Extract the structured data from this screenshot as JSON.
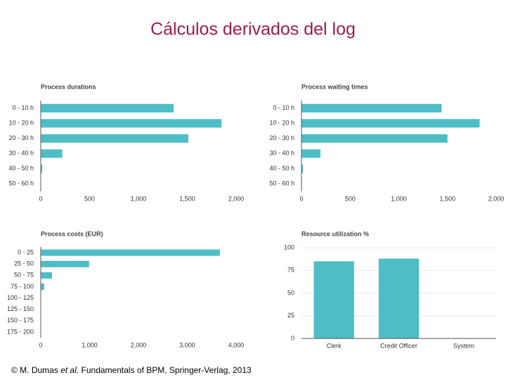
{
  "title": "Cálculos derivados del log",
  "footer": [
    "© M. Dumas ",
    "et al.",
    " Fundamentals of BPM, Springer-Verlag, 2013"
  ],
  "chart_data": [
    {
      "type": "bar",
      "horizontal": true,
      "title": "Process durations",
      "categories": [
        "0 - 10 h",
        "10 - 20 h",
        "20 - 30 h",
        "30 - 40 h",
        "40 - 50 h",
        "50 - 60 h"
      ],
      "values": [
        1360,
        1850,
        1510,
        220,
        15,
        0
      ],
      "color": "#4dbdc6",
      "xlim": [
        0,
        2000
      ],
      "xticks": [
        0,
        500,
        {
          "value": 1000,
          "label": "1,000"
        },
        {
          "value": 1500,
          "label": "1,500"
        },
        {
          "value": 2000,
          "label": "2,000"
        }
      ],
      "grid": false
    },
    {
      "type": "bar",
      "horizontal": true,
      "title": "Process waiting times",
      "categories": [
        "0 - 10 h",
        "10 - 20 h",
        "20 - 30 h",
        "30 - 40 h",
        "40 - 50 h",
        "50 - 60 h"
      ],
      "values": [
        1440,
        1830,
        1500,
        195,
        15,
        0
      ],
      "color": "#4dbdc6",
      "xlim": [
        0,
        2000
      ],
      "xticks": [
        0,
        500,
        {
          "value": 1000,
          "label": "1,000"
        },
        {
          "value": 1500,
          "label": "1,500"
        },
        {
          "value": 2000,
          "label": "2,000"
        }
      ],
      "grid": false
    },
    {
      "type": "bar",
      "horizontal": true,
      "title": "Process costs (EUR)",
      "categories": [
        "0 - 25",
        "25 - 50",
        "50 - 75",
        "75 - 100",
        "100 - 125",
        "125 - 150",
        "150 - 175",
        "175 - 200"
      ],
      "values": [
        3670,
        990,
        230,
        70,
        0,
        0,
        0,
        0
      ],
      "color": "#4dbdc6",
      "xlim": [
        0,
        4000
      ],
      "xticks": [
        0,
        {
          "value": 1000,
          "label": "1,000"
        },
        {
          "value": 2000,
          "label": "2,000"
        },
        {
          "value": 3000,
          "label": "3,000"
        },
        {
          "value": 4000,
          "label": "4,000"
        }
      ],
      "grid": false
    },
    {
      "type": "bar",
      "horizontal": false,
      "title": "Resource utilization %",
      "categories": [
        "Clerk",
        "Credit Officer",
        "System"
      ],
      "values": [
        85,
        88,
        0
      ],
      "color": "#4dbdc6",
      "ylim": [
        0,
        100
      ],
      "yticks": [
        0,
        25,
        50,
        75,
        100
      ],
      "grid": true
    }
  ]
}
